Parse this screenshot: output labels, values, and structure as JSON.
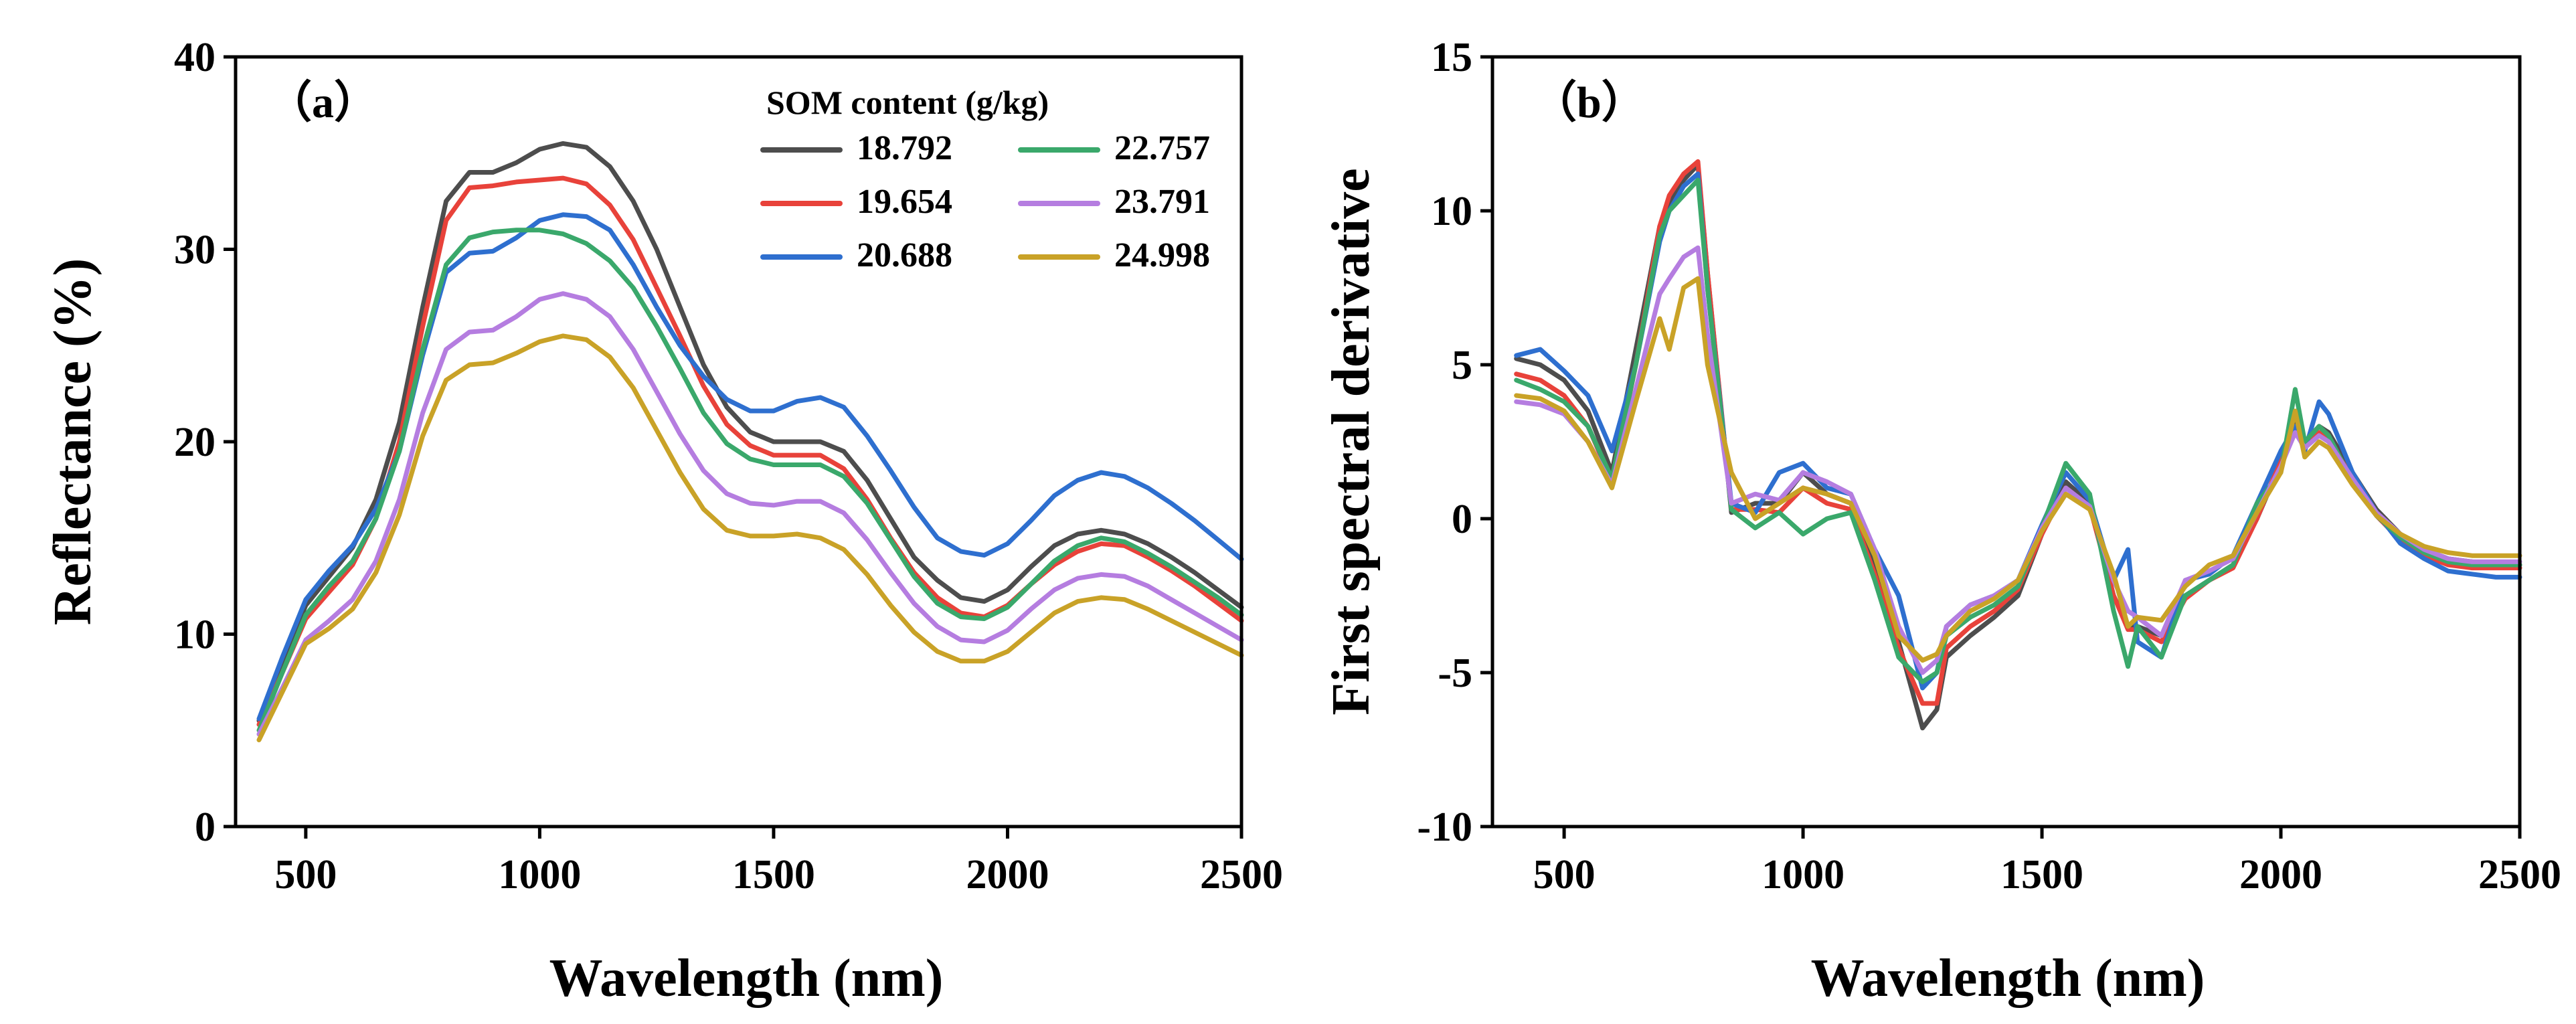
{
  "chart_data": [
    {
      "type": "line",
      "panel_label": "（a）",
      "xlabel": "Wavelength (nm)",
      "ylabel": "Reflectance (%)",
      "xlim": [
        350,
        2500
      ],
      "ylim": [
        0,
        40
      ],
      "xticks": [
        500,
        1000,
        1500,
        2000,
        2500
      ],
      "yticks": [
        0,
        10,
        20,
        30,
        40
      ],
      "grid": false,
      "legend_title": "SOM content (g/kg)",
      "legend_position": "top-right",
      "x": [
        400,
        450,
        500,
        550,
        600,
        650,
        700,
        750,
        800,
        850,
        900,
        950,
        1000,
        1050,
        1100,
        1150,
        1200,
        1250,
        1300,
        1350,
        1400,
        1450,
        1500,
        1550,
        1600,
        1650,
        1700,
        1750,
        1800,
        1850,
        1900,
        1950,
        2000,
        2050,
        2100,
        2150,
        2200,
        2250,
        2300,
        2350,
        2400,
        2450,
        2500
      ],
      "series": [
        {
          "name": "18.792",
          "color": "#4d4d4d",
          "values": [
            5.5,
            8.5,
            11.5,
            13.0,
            14.5,
            17.0,
            21.0,
            27.0,
            32.5,
            34.0,
            34.0,
            34.5,
            35.2,
            35.5,
            35.3,
            34.3,
            32.5,
            30.0,
            27.0,
            24.0,
            21.8,
            20.5,
            20.0,
            20.0,
            20.0,
            19.5,
            18.0,
            16.0,
            14.0,
            12.8,
            11.9,
            11.7,
            12.3,
            13.5,
            14.6,
            15.2,
            15.4,
            15.2,
            14.7,
            14.0,
            13.2,
            12.3,
            11.4
          ]
        },
        {
          "name": "19.654",
          "color": "#e8423a",
          "values": [
            5.3,
            8.0,
            10.8,
            12.2,
            13.6,
            16.0,
            20.0,
            26.0,
            31.5,
            33.2,
            33.3,
            33.5,
            33.6,
            33.7,
            33.4,
            32.3,
            30.5,
            28.0,
            25.5,
            22.9,
            20.9,
            19.8,
            19.3,
            19.3,
            19.3,
            18.6,
            17.0,
            15.0,
            13.2,
            11.9,
            11.1,
            10.9,
            11.5,
            12.6,
            13.6,
            14.3,
            14.7,
            14.6,
            14.0,
            13.3,
            12.5,
            11.6,
            10.7
          ]
        },
        {
          "name": "20.688",
          "color": "#2e6fcf",
          "values": [
            5.6,
            8.8,
            11.8,
            13.3,
            14.6,
            16.5,
            19.5,
            24.5,
            28.8,
            29.8,
            29.9,
            30.6,
            31.5,
            31.8,
            31.7,
            31.0,
            29.2,
            27.0,
            25.0,
            23.4,
            22.2,
            21.6,
            21.6,
            22.1,
            22.3,
            21.8,
            20.3,
            18.5,
            16.6,
            15.0,
            14.3,
            14.1,
            14.7,
            15.9,
            17.2,
            18.0,
            18.4,
            18.2,
            17.6,
            16.8,
            15.9,
            14.9,
            13.9
          ]
        },
        {
          "name": "22.757",
          "color": "#3aa86b",
          "values": [
            5.0,
            8.0,
            11.0,
            12.5,
            13.8,
            16.0,
            19.5,
            24.8,
            29.2,
            30.6,
            30.9,
            31.0,
            31.0,
            30.8,
            30.3,
            29.4,
            28.0,
            26.0,
            23.8,
            21.5,
            19.9,
            19.1,
            18.8,
            18.8,
            18.8,
            18.2,
            16.8,
            14.9,
            13.0,
            11.6,
            10.9,
            10.8,
            11.4,
            12.6,
            13.8,
            14.6,
            15.0,
            14.8,
            14.2,
            13.5,
            12.7,
            11.9,
            11.0
          ]
        },
        {
          "name": "23.791",
          "color": "#b57de0",
          "values": [
            4.8,
            7.2,
            9.7,
            10.7,
            11.8,
            13.8,
            17.0,
            21.5,
            24.8,
            25.7,
            25.8,
            26.5,
            27.4,
            27.7,
            27.4,
            26.5,
            24.8,
            22.6,
            20.4,
            18.5,
            17.3,
            16.8,
            16.7,
            16.9,
            16.9,
            16.3,
            14.9,
            13.2,
            11.6,
            10.4,
            9.7,
            9.6,
            10.2,
            11.3,
            12.3,
            12.9,
            13.1,
            13.0,
            12.5,
            11.8,
            11.1,
            10.4,
            9.7
          ]
        },
        {
          "name": "24.998",
          "color": "#c9a227",
          "values": [
            4.5,
            7.0,
            9.5,
            10.3,
            11.3,
            13.2,
            16.2,
            20.3,
            23.2,
            24.0,
            24.1,
            24.6,
            25.2,
            25.5,
            25.3,
            24.4,
            22.8,
            20.6,
            18.4,
            16.5,
            15.4,
            15.1,
            15.1,
            15.2,
            15.0,
            14.4,
            13.1,
            11.5,
            10.1,
            9.1,
            8.6,
            8.6,
            9.1,
            10.1,
            11.1,
            11.7,
            11.9,
            11.8,
            11.3,
            10.7,
            10.1,
            9.5,
            8.9
          ]
        }
      ]
    },
    {
      "type": "line",
      "panel_label": "（b）",
      "xlabel": "Wavelength (nm)",
      "ylabel": "First spectral derivative",
      "xlim": [
        350,
        2500
      ],
      "ylim": [
        -10,
        15
      ],
      "xticks": [
        500,
        1000,
        1500,
        2000,
        2500
      ],
      "yticks": [
        -10,
        -5,
        0,
        5,
        10,
        15
      ],
      "grid": false,
      "x": [
        400,
        450,
        500,
        550,
        600,
        650,
        700,
        720,
        750,
        780,
        800,
        850,
        900,
        950,
        1000,
        1050,
        1100,
        1150,
        1200,
        1250,
        1280,
        1300,
        1350,
        1400,
        1450,
        1500,
        1550,
        1600,
        1650,
        1680,
        1700,
        1750,
        1800,
        1850,
        1900,
        1950,
        2000,
        2030,
        2050,
        2080,
        2100,
        2150,
        2200,
        2250,
        2300,
        2350,
        2400,
        2450,
        2500
      ],
      "series": [
        {
          "name": "18.792",
          "color": "#4d4d4d",
          "values": [
            5.2,
            5.0,
            4.5,
            3.5,
            1.5,
            5.5,
            9.5,
            10.2,
            11.0,
            11.5,
            8.0,
            0.2,
            0.5,
            0.5,
            1.5,
            0.8,
            0.5,
            -1.5,
            -4.0,
            -6.8,
            -6.2,
            -4.5,
            -3.8,
            -3.2,
            -2.5,
            -0.5,
            1.2,
            0.5,
            -2.5,
            -3.5,
            -3.5,
            -3.8,
            -2.5,
            -2.0,
            -1.5,
            0.0,
            1.8,
            3.2,
            2.5,
            3.0,
            2.8,
            1.5,
            0.3,
            -0.5,
            -1.0,
            -1.3,
            -1.4,
            -1.5,
            -1.5
          ]
        },
        {
          "name": "19.654",
          "color": "#e8423a",
          "values": [
            4.7,
            4.5,
            4.0,
            3.0,
            1.2,
            5.0,
            9.5,
            10.5,
            11.2,
            11.6,
            8.0,
            0.3,
            0.3,
            0.2,
            1.0,
            0.5,
            0.3,
            -1.8,
            -4.2,
            -6.0,
            -6.0,
            -4.2,
            -3.5,
            -3.0,
            -2.3,
            -0.5,
            1.0,
            0.4,
            -2.5,
            -3.6,
            -3.6,
            -4.0,
            -2.6,
            -2.0,
            -1.6,
            0.0,
            1.9,
            2.8,
            2.5,
            2.8,
            2.6,
            1.3,
            0.1,
            -0.7,
            -1.2,
            -1.5,
            -1.6,
            -1.6,
            -1.6
          ]
        },
        {
          "name": "20.688",
          "color": "#2e6fcf",
          "values": [
            5.3,
            5.5,
            4.8,
            4.0,
            2.2,
            5.0,
            9.0,
            10.0,
            10.8,
            11.2,
            7.5,
            0.5,
            0.2,
            1.5,
            1.8,
            1.0,
            0.8,
            -1.0,
            -2.5,
            -5.5,
            -5.0,
            -3.5,
            -2.8,
            -2.5,
            -2.0,
            -0.2,
            1.5,
            0.6,
            -2.0,
            -1.0,
            -4.0,
            -4.5,
            -2.0,
            -1.8,
            -1.2,
            0.5,
            2.2,
            3.0,
            2.2,
            3.8,
            3.4,
            1.5,
            0.2,
            -0.8,
            -1.3,
            -1.7,
            -1.8,
            -1.9,
            -1.9
          ]
        },
        {
          "name": "22.757",
          "color": "#3aa86b",
          "values": [
            4.5,
            4.2,
            3.8,
            3.0,
            1.3,
            5.0,
            9.2,
            10.0,
            10.5,
            11.0,
            7.5,
            0.3,
            -0.3,
            0.2,
            -0.5,
            0.0,
            0.2,
            -2.0,
            -4.5,
            -5.3,
            -5.0,
            -3.8,
            -3.2,
            -2.8,
            -2.2,
            -0.3,
            1.8,
            0.8,
            -3.0,
            -4.8,
            -3.5,
            -4.5,
            -2.5,
            -2.0,
            -1.5,
            0.5,
            1.5,
            4.2,
            2.5,
            3.0,
            2.7,
            1.2,
            0.1,
            -0.6,
            -1.1,
            -1.4,
            -1.5,
            -1.5,
            -1.5
          ]
        },
        {
          "name": "23.791",
          "color": "#b57de0",
          "values": [
            3.8,
            3.7,
            3.4,
            2.5,
            1.1,
            4.2,
            7.3,
            7.8,
            8.5,
            8.8,
            6.0,
            0.5,
            0.8,
            0.6,
            1.5,
            1.2,
            0.8,
            -1.0,
            -3.5,
            -5.0,
            -4.6,
            -3.5,
            -2.8,
            -2.5,
            -2.0,
            -0.3,
            1.0,
            0.4,
            -2.0,
            -3.0,
            -3.2,
            -3.8,
            -2.0,
            -1.7,
            -1.3,
            0.2,
            1.7,
            2.8,
            2.3,
            2.7,
            2.5,
            1.3,
            0.2,
            -0.5,
            -1.0,
            -1.3,
            -1.4,
            -1.4,
            -1.4
          ]
        },
        {
          "name": "24.998",
          "color": "#c9a227",
          "values": [
            4.0,
            3.9,
            3.5,
            2.5,
            1.0,
            3.8,
            6.5,
            5.5,
            7.5,
            7.8,
            5.0,
            1.5,
            0.0,
            0.5,
            1.0,
            0.8,
            0.5,
            -1.2,
            -3.8,
            -4.6,
            -4.4,
            -3.8,
            -3.0,
            -2.6,
            -2.0,
            -0.4,
            0.8,
            0.3,
            -1.8,
            -3.5,
            -3.2,
            -3.3,
            -2.2,
            -1.5,
            -1.2,
            0.2,
            1.5,
            3.5,
            2.0,
            2.5,
            2.3,
            1.1,
            0.1,
            -0.5,
            -0.9,
            -1.1,
            -1.2,
            -1.2,
            -1.2
          ]
        }
      ]
    }
  ]
}
